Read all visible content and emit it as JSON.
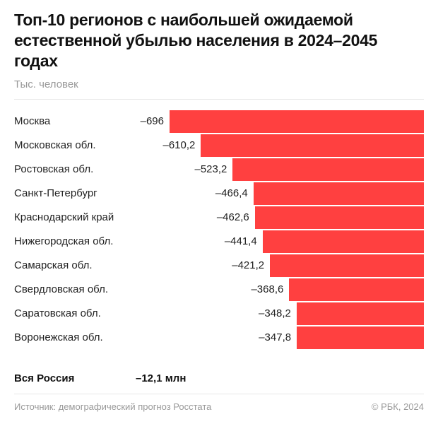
{
  "title": "Топ-10 регионов с наибольшей ожидаемой естественной убылью населения в 2024–2045 годах",
  "subtitle": "Тыс. человек",
  "total": {
    "label": "Вся Россия",
    "value": "–12,1 млн"
  },
  "source": "Источник: демографический прогноз Росстата",
  "copyright": "© РБК, 2024",
  "chart_data": {
    "type": "bar",
    "orientation": "horizontal",
    "title": "Топ-10 регионов с наибольшей ожидаемой естественной убылью населения в 2024–2045 годах",
    "unit": "Тыс. человек",
    "bar_color": "#ff4040",
    "categories": [
      "Москва",
      "Московская обл.",
      "Ростовская обл.",
      "Санкт-Петербург",
      "Краснодарский край",
      "Нижегородская обл.",
      "Самарская обл.",
      "Свердловская обл.",
      "Саратовская обл.",
      "Воронежская обл."
    ],
    "values": [
      -696,
      -610.2,
      -523.2,
      -466.4,
      -462.6,
      -441.4,
      -421.2,
      -368.6,
      -348.2,
      -347.8
    ],
    "value_labels": [
      "–696",
      "–610,2",
      "–523,2",
      "–466,4",
      "–462,6",
      "–441,4",
      "–421,2",
      "–368,6",
      "–348,2",
      "–347,8"
    ]
  }
}
